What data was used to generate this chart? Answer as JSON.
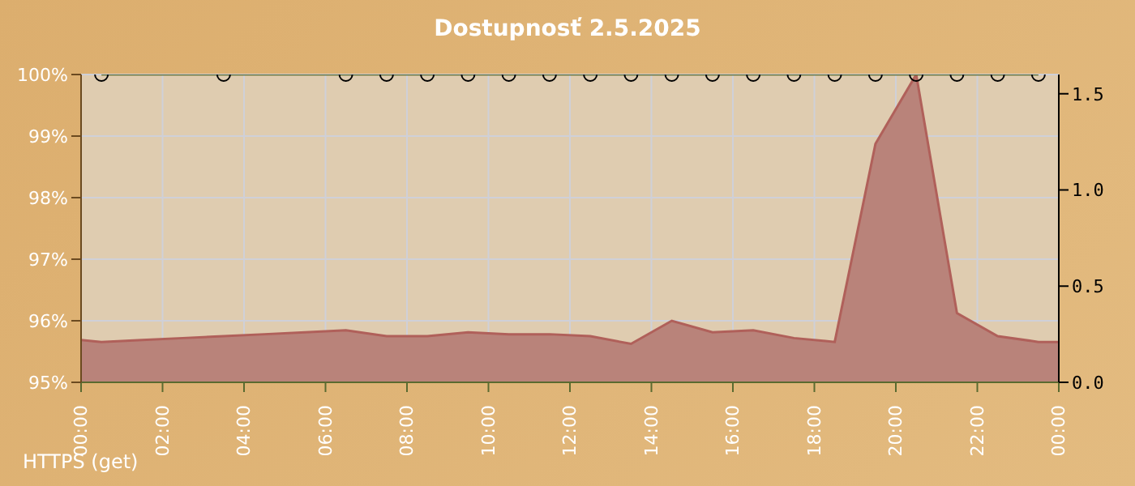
{
  "chart_data": {
    "type": "area",
    "title": "Dostupnosť 2.5.2025",
    "annotations": [
      "HTTPS (get)"
    ],
    "xlim": [
      0,
      24
    ],
    "xticks": [
      {
        "value": 0,
        "label": "00:00"
      },
      {
        "value": 2,
        "label": "02:00"
      },
      {
        "value": 4,
        "label": "04:00"
      },
      {
        "value": 6,
        "label": "06:00"
      },
      {
        "value": 8,
        "label": "08:00"
      },
      {
        "value": 10,
        "label": "10:00"
      },
      {
        "value": 12,
        "label": "12:00"
      },
      {
        "value": 14,
        "label": "14:00"
      },
      {
        "value": 16,
        "label": "16:00"
      },
      {
        "value": 18,
        "label": "18:00"
      },
      {
        "value": 20,
        "label": "20:00"
      },
      {
        "value": 22,
        "label": "22:00"
      },
      {
        "value": 24,
        "label": "00:00"
      }
    ],
    "ylim": [
      95,
      100
    ],
    "yticks": [
      {
        "value": 95,
        "label": "95%"
      },
      {
        "value": 96,
        "label": "96%"
      },
      {
        "value": 97,
        "label": "97%"
      },
      {
        "value": 98,
        "label": "98%"
      },
      {
        "value": 99,
        "label": "99%"
      },
      {
        "value": 100,
        "label": "100%"
      }
    ],
    "y2lim": [
      0,
      1.6
    ],
    "y2ticks": [
      {
        "value": 0,
        "label": "0.0"
      },
      {
        "value": 0.5,
        "label": "0.5"
      },
      {
        "value": 1,
        "label": "1.0"
      },
      {
        "value": 1.5,
        "label": "1.5"
      }
    ],
    "grid": true,
    "series": [
      {
        "axis": "y2",
        "color": "#b9837a",
        "x": [
          0,
          0.5,
          1.5,
          2.5,
          3.5,
          4.5,
          5.5,
          6.5,
          7.5,
          8.5,
          9.5,
          10.5,
          11.5,
          12.5,
          13.5,
          14.5,
          15.5,
          16.5,
          17.5,
          18.5,
          19.5,
          20.5,
          21.5,
          22.5,
          23.5,
          24
        ],
        "values": [
          0.22,
          0.21,
          0.22,
          0.23,
          0.24,
          0.25,
          0.26,
          0.27,
          0.24,
          0.24,
          0.26,
          0.25,
          0.25,
          0.24,
          0.2,
          0.32,
          0.26,
          0.27,
          0.23,
          0.21,
          1.24,
          1.6,
          0.36,
          0.24,
          0.21,
          0.21
        ]
      },
      {
        "type": "line",
        "color": "#5a6a30",
        "marker": "circle",
        "x": [
          0.5,
          3.5,
          6.5,
          7.5,
          8.5,
          9.5,
          10.5,
          11.5,
          12.5,
          13.5,
          14.5,
          15.5,
          16.5,
          17.5,
          18.5,
          19.5,
          20.5,
          21.5,
          22.5,
          23.5
        ],
        "values": [
          100,
          100,
          100,
          100,
          100,
          100,
          100,
          100,
          100,
          100,
          100,
          100,
          100,
          100,
          100,
          100,
          100,
          100,
          100,
          100
        ]
      }
    ]
  }
}
